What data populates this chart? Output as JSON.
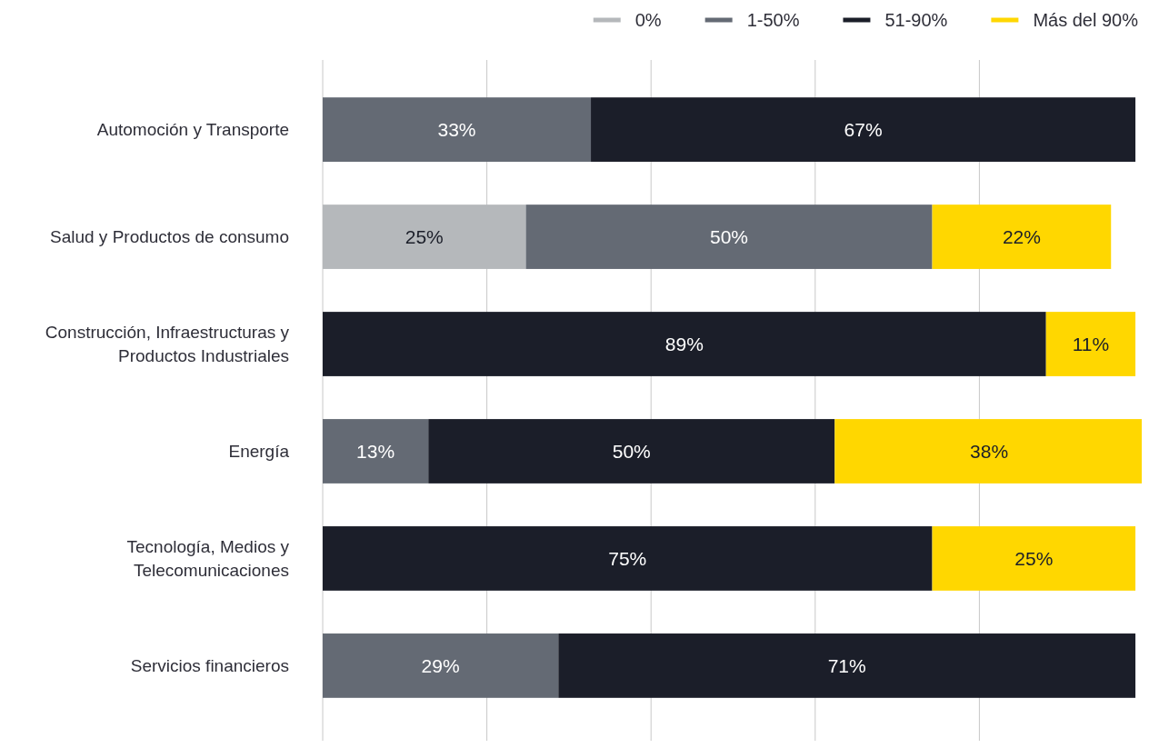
{
  "chart_data": {
    "type": "bar",
    "orientation": "horizontal",
    "stacked": true,
    "categories": [
      "Automoción y Transporte",
      "Salud y Productos de consumo",
      "Construcción, Infraestructuras y Productos Industriales",
      "Energía",
      "Tecnología, Medios y Telecomunicaciones",
      "Servicios financieros"
    ],
    "series": [
      {
        "name": "0%",
        "color": "#b5b8bb",
        "values": [
          null,
          25,
          null,
          null,
          null,
          null
        ],
        "value_labels": [
          null,
          "25%",
          null,
          null,
          null,
          null
        ]
      },
      {
        "name": "1-50%",
        "color": "#646a74",
        "values": [
          33,
          50,
          null,
          13,
          null,
          29
        ],
        "value_labels": [
          "33%",
          "50%",
          null,
          "13%",
          null,
          "29%"
        ]
      },
      {
        "name": "51-90%",
        "color": "#1b1e29",
        "values": [
          67,
          null,
          89,
          50,
          75,
          71
        ],
        "value_labels": [
          "67%",
          null,
          "89%",
          "50%",
          "75%",
          "71%"
        ]
      },
      {
        "name": "Más del 90%",
        "color": "#ffd700",
        "values": [
          null,
          22,
          11,
          38,
          25,
          null
        ],
        "value_labels": [
          null,
          "22%",
          "11%",
          "38%",
          "25%",
          null
        ]
      }
    ],
    "grid": "x",
    "legend": "top right",
    "tick_labels": "y"
  }
}
